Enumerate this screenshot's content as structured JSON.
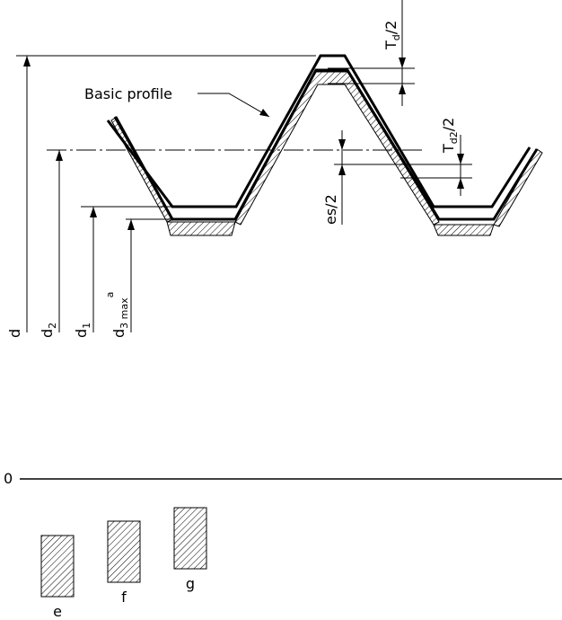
{
  "diagram": {
    "profile_label": "Basic profile",
    "dims": {
      "td_half": {
        "main": "T",
        "sub": "d",
        "tail": "/2"
      },
      "td2_half": {
        "main": "T",
        "sub": "d2",
        "tail": "/2"
      },
      "es_half": "es/2",
      "d": "d",
      "d2": {
        "main": "d",
        "sub": "2"
      },
      "d1": {
        "main": "d",
        "sub": "1"
      },
      "d3max": {
        "main": "d",
        "sub": "3 max",
        "sup": "a"
      }
    }
  },
  "tolerance_positions": {
    "zero_line_label": "0",
    "zones": [
      "e",
      "f",
      "g"
    ]
  }
}
